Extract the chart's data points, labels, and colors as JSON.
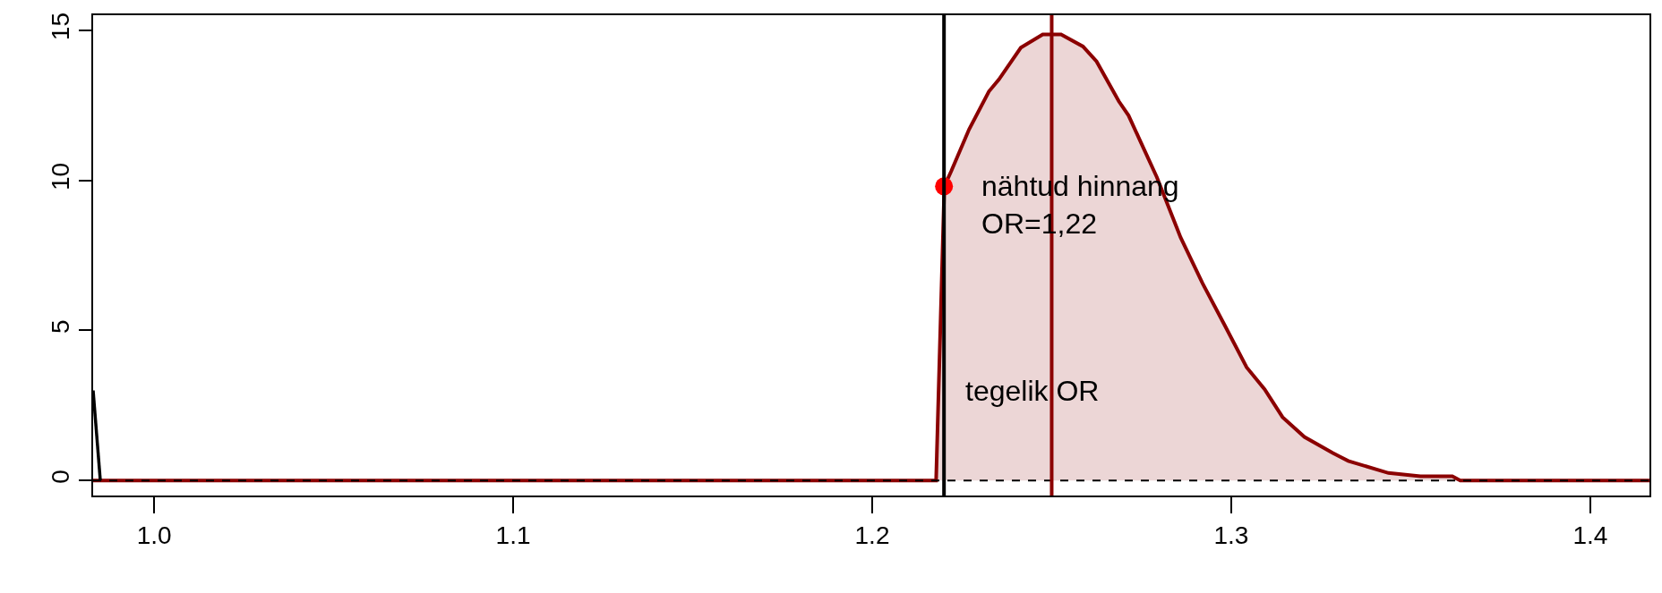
{
  "chart_data": {
    "type": "area",
    "series": [
      {
        "color": "#8b0000",
        "x": [
          0.983,
          1.2178,
          1.2201,
          1.222,
          1.227,
          1.2325,
          1.2353,
          1.2414,
          1.2475,
          1.2526,
          1.2587,
          1.2625,
          1.2687,
          1.2714,
          1.2793,
          1.2859,
          1.292,
          1.2982,
          1.3043,
          1.3093,
          1.3143,
          1.3204,
          1.3282,
          1.3326,
          1.3438,
          1.3527,
          1.3616,
          1.3638,
          1.4165
        ],
        "values": [
          0,
          0,
          9.8,
          10.3,
          11.7,
          12.96,
          13.36,
          14.42,
          14.86,
          14.86,
          14.46,
          13.96,
          12.63,
          12.16,
          10.1,
          8.1,
          6.57,
          5.17,
          3.77,
          3.04,
          2.11,
          1.45,
          0.92,
          0.65,
          0.25,
          0.14,
          0.14,
          0,
          0
        ]
      },
      {
        "type": "line",
        "color": "#000000",
        "x": [
          0.983,
          0.985
        ],
        "values": [
          3,
          0
        ]
      },
      {
        "type": "scatter",
        "color": "#ff0000",
        "marker": "circle",
        "x": [
          1.22
        ],
        "values": [
          9.8
        ]
      }
    ],
    "annotations": [
      {
        "text": "nähtud hinnang\nOR=1,22",
        "x": 1.22,
        "y": 9.8
      }
    ],
    "ref_lines": [
      {
        "axis": "x",
        "value": 1.22,
        "label": "tegelik OR",
        "color": "#000000"
      },
      {
        "axis": "x",
        "value": 1.25,
        "color": "#8b0000"
      },
      {
        "axis": "y",
        "value": 0,
        "color": "#000000",
        "line_style": "dashed"
      }
    ],
    "xlim": [
      0.983,
      1.4165
    ],
    "ylim": [
      -0.5,
      15.5
    ],
    "xticks": [
      {
        "value": 1.0,
        "label": "1.0"
      },
      {
        "value": 1.1,
        "label": "1.1"
      },
      {
        "value": 1.2,
        "label": "1.2"
      },
      {
        "value": 1.3,
        "label": "1.3"
      },
      {
        "value": 1.4,
        "label": "1.4"
      }
    ],
    "yticks": [
      0,
      5,
      10,
      15
    ]
  }
}
